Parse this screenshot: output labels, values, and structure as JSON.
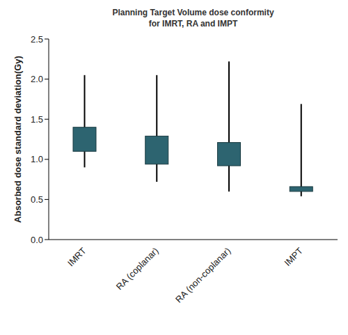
{
  "chart_data": {
    "type": "box",
    "title": "Planning Target Volume dose conformity for IMRT, RA and IMPT",
    "y_label": "Absorbed dose standard deviation(Gy)",
    "categories": [
      "IMRT",
      "RA (coplanar)",
      "RA (non-coplanar)",
      "IMPT"
    ],
    "min": [
      0.9,
      0.72,
      0.6,
      0.54
    ],
    "q1": [
      1.1,
      0.94,
      0.92,
      0.6
    ],
    "q3": [
      1.4,
      1.29,
      1.21,
      0.66
    ],
    "max": [
      2.05,
      2.05,
      2.22,
      1.69
    ],
    "color": "#2d6470",
    "ylim": [
      0,
      2.5
    ],
    "yticks": [
      {
        "value": 0,
        "label": "0.0"
      },
      {
        "value": 0.5,
        "label": "0.5"
      },
      {
        "value": 1,
        "label": "1.0"
      },
      {
        "value": 1.5,
        "label": "1.5"
      },
      {
        "value": 2,
        "label": "2.0"
      },
      {
        "value": 2.5,
        "label": "2.5"
      }
    ],
    "grid": false
  }
}
